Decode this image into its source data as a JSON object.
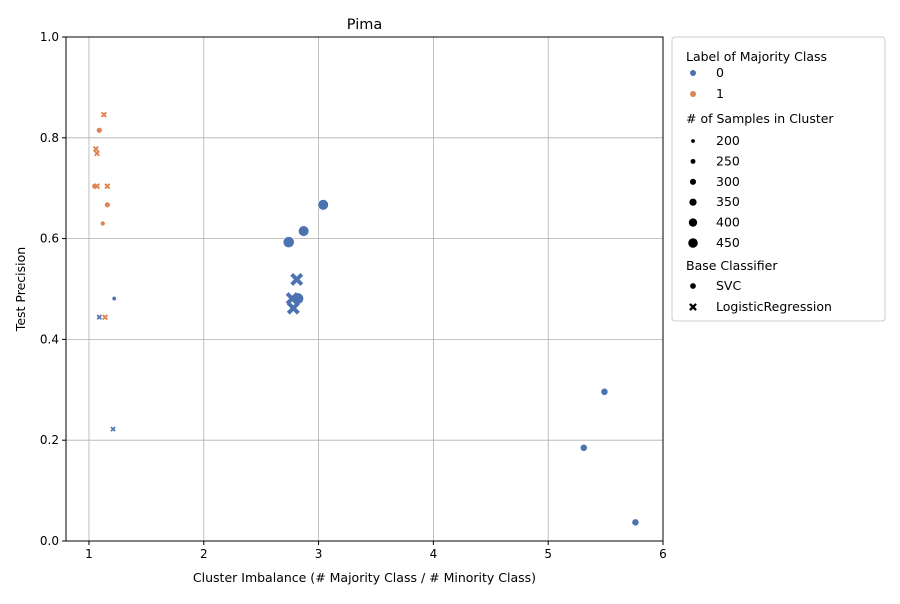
{
  "chart_data": {
    "type": "scatter",
    "title": "Pima",
    "xlabel": "Cluster Imbalance (# Majority Class / # Minority Class)",
    "ylabel": "Test Precision",
    "xlim": [
      0.8,
      6.0
    ],
    "ylim": [
      0.0,
      1.0
    ],
    "xticks": [
      1,
      2,
      3,
      4,
      5,
      6
    ],
    "yticks": [
      0.0,
      0.2,
      0.4,
      0.6,
      0.8,
      1.0
    ],
    "grid": true,
    "legend_position": "outside-right",
    "colors": {
      "0": "#4c72b0",
      "1": "#dd8452"
    },
    "hue_title": "Label of Majority Class",
    "hue_levels": [
      "0",
      "1"
    ],
    "size_title": "# of Samples in Cluster",
    "size_levels": [
      200,
      250,
      300,
      350,
      400,
      450
    ],
    "style_title": "Base Classifier",
    "style_levels": [
      {
        "label": "SVC",
        "marker": "circle"
      },
      {
        "label": "LogisticRegression",
        "marker": "x"
      }
    ],
    "points": [
      {
        "x": 1.05,
        "y": 0.704,
        "label": "1",
        "size": 250,
        "classifier": "SVC"
      },
      {
        "x": 1.09,
        "y": 0.815,
        "label": "1",
        "size": 250,
        "classifier": "SVC"
      },
      {
        "x": 1.12,
        "y": 0.63,
        "label": "1",
        "size": 220,
        "classifier": "SVC"
      },
      {
        "x": 1.16,
        "y": 0.667,
        "label": "1",
        "size": 250,
        "classifier": "SVC"
      },
      {
        "x": 1.22,
        "y": 0.481,
        "label": "0",
        "size": 200,
        "classifier": "SVC"
      },
      {
        "x": 2.74,
        "y": 0.593,
        "label": "0",
        "size": 450,
        "classifier": "SVC"
      },
      {
        "x": 2.87,
        "y": 0.615,
        "label": "0",
        "size": 430,
        "classifier": "SVC"
      },
      {
        "x": 2.82,
        "y": 0.481,
        "label": "0",
        "size": 460,
        "classifier": "SVC"
      },
      {
        "x": 3.04,
        "y": 0.667,
        "label": "0",
        "size": 430,
        "classifier": "SVC"
      },
      {
        "x": 5.31,
        "y": 0.185,
        "label": "0",
        "size": 300,
        "classifier": "SVC"
      },
      {
        "x": 5.49,
        "y": 0.296,
        "label": "0",
        "size": 300,
        "classifier": "SVC"
      },
      {
        "x": 5.76,
        "y": 0.037,
        "label": "0",
        "size": 300,
        "classifier": "SVC"
      },
      {
        "x": 1.13,
        "y": 0.846,
        "label": "1",
        "size": 220,
        "classifier": "LogisticRegression"
      },
      {
        "x": 1.06,
        "y": 0.778,
        "label": "1",
        "size": 220,
        "classifier": "LogisticRegression"
      },
      {
        "x": 1.07,
        "y": 0.769,
        "label": "1",
        "size": 220,
        "classifier": "LogisticRegression"
      },
      {
        "x": 1.07,
        "y": 0.704,
        "label": "1",
        "size": 220,
        "classifier": "LogisticRegression"
      },
      {
        "x": 1.16,
        "y": 0.704,
        "label": "1",
        "size": 220,
        "classifier": "LogisticRegression"
      },
      {
        "x": 1.14,
        "y": 0.444,
        "label": "1",
        "size": 220,
        "classifier": "LogisticRegression"
      },
      {
        "x": 1.09,
        "y": 0.444,
        "label": "0",
        "size": 200,
        "classifier": "LogisticRegression"
      },
      {
        "x": 1.21,
        "y": 0.222,
        "label": "0",
        "size": 200,
        "classifier": "LogisticRegression"
      },
      {
        "x": 2.81,
        "y": 0.519,
        "label": "0",
        "size": 430,
        "classifier": "LogisticRegression"
      },
      {
        "x": 2.77,
        "y": 0.481,
        "label": "0",
        "size": 430,
        "classifier": "LogisticRegression"
      },
      {
        "x": 2.78,
        "y": 0.462,
        "label": "0",
        "size": 430,
        "classifier": "LogisticRegression"
      }
    ]
  }
}
